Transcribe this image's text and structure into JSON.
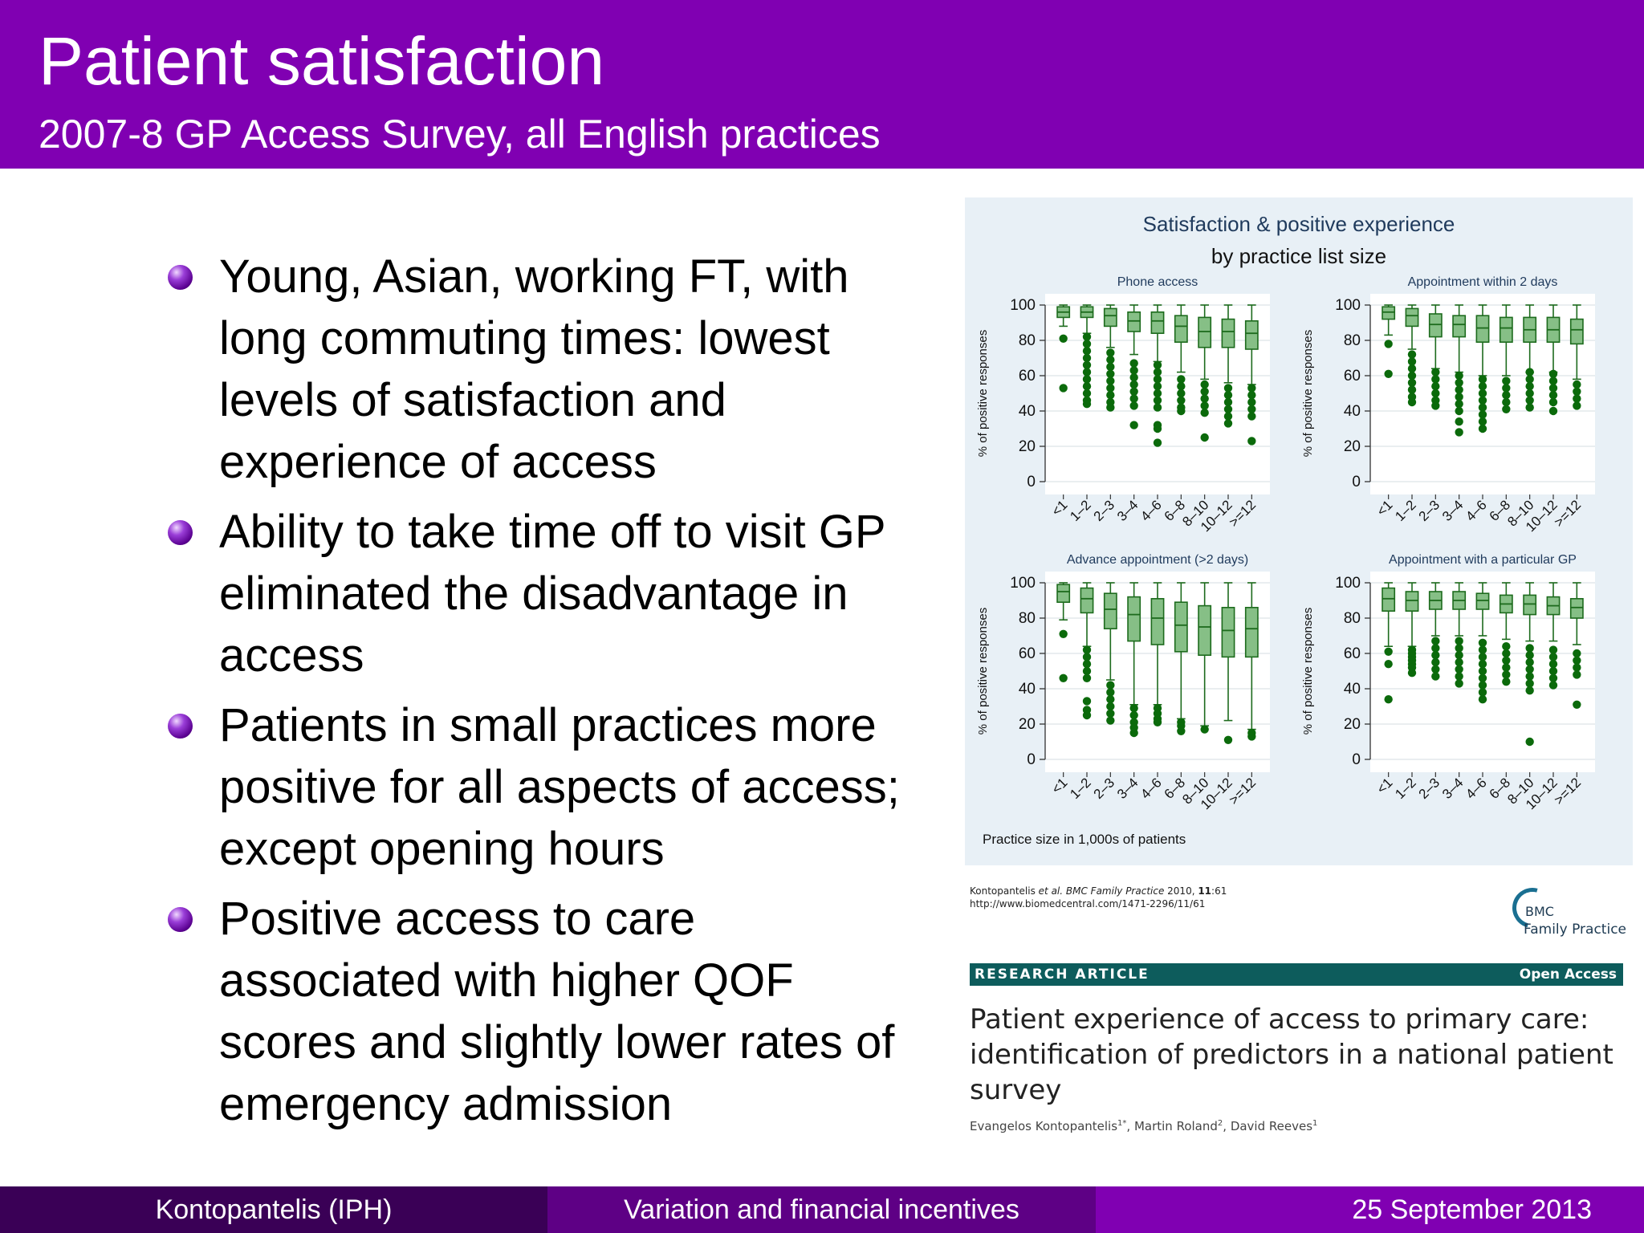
{
  "slide": {
    "title": "Patient satisfaction",
    "subtitle": "2007-8 GP Access Survey, all English practices"
  },
  "bullets": [
    "Young, Asian, working FT, with long commuting times: lowest levels of satisfaction and experience of access",
    "Ability to take time off to visit GP eliminated the disadvantage in access",
    "Patients in small practices more positive for all aspects of access; except opening hours",
    "Positive access to care associated with higher QOF scores and slightly lower rates of emergency admission"
  ],
  "figure": {
    "title_line1": "Satisfaction & positive experience",
    "title_line2": "by practice list size",
    "xlabel_note": "Practice size in 1,000s of patients"
  },
  "chart_data": {
    "type": "box",
    "title": "Satisfaction & positive experience by practice list size",
    "xlabel": "Practice size in 1,000s of patients",
    "ylabel": "% of positive responses",
    "categories": [
      "<1",
      "1–2",
      "2–3",
      "3–4",
      "4–6",
      "6–8",
      "8–10",
      "10–12",
      ">=12"
    ],
    "yticks": [
      0,
      20,
      40,
      60,
      80,
      100
    ],
    "ylim": [
      0,
      100
    ],
    "grid": true,
    "panels": [
      {
        "name": "Phone access",
        "boxes": [
          {
            "whisker_low": 88,
            "q1": 93,
            "median": 96,
            "q3": 99,
            "whisker_high": 100,
            "outliers": [
              81,
              53
            ]
          },
          {
            "whisker_low": 84,
            "q1": 93,
            "median": 96,
            "q3": 99,
            "whisker_high": 100,
            "outliers": [
              82,
              78,
              74,
              70,
              66,
              62,
              58,
              54,
              50,
              46,
              44
            ]
          },
          {
            "whisker_low": 76,
            "q1": 88,
            "median": 94,
            "q3": 98,
            "whisker_high": 100,
            "outliers": [
              73,
              69,
              65,
              61,
              57,
              53,
              49,
              45,
              42
            ]
          },
          {
            "whisker_low": 72,
            "q1": 85,
            "median": 91,
            "q3": 96,
            "whisker_high": 100,
            "outliers": [
              67,
              63,
              59,
              55,
              51,
              47,
              43,
              32
            ]
          },
          {
            "whisker_low": 68,
            "q1": 84,
            "median": 91,
            "q3": 96,
            "whisker_high": 100,
            "outliers": [
              66,
              62,
              58,
              54,
              50,
              46,
              42,
              32,
              30,
              22
            ]
          },
          {
            "whisker_low": 62,
            "q1": 79,
            "median": 88,
            "q3": 94,
            "whisker_high": 100,
            "outliers": [
              58,
              54,
              50,
              46,
              42,
              40
            ]
          },
          {
            "whisker_low": 58,
            "q1": 76,
            "median": 85,
            "q3": 93,
            "whisker_high": 100,
            "outliers": [
              55,
              51,
              47,
              43,
              39,
              25
            ]
          },
          {
            "whisker_low": 56,
            "q1": 76,
            "median": 85,
            "q3": 92,
            "whisker_high": 100,
            "outliers": [
              53,
              49,
              45,
              41,
              37,
              33
            ]
          },
          {
            "whisker_low": 55,
            "q1": 75,
            "median": 84,
            "q3": 91,
            "whisker_high": 100,
            "outliers": [
              53,
              49,
              45,
              41,
              37,
              23
            ]
          }
        ]
      },
      {
        "name": "Appointment within 2 days",
        "boxes": [
          {
            "whisker_low": 83,
            "q1": 92,
            "median": 96,
            "q3": 99,
            "whisker_high": 100,
            "outliers": [
              78,
              61
            ]
          },
          {
            "whisker_low": 75,
            "q1": 88,
            "median": 94,
            "q3": 98,
            "whisker_high": 100,
            "outliers": [
              72,
              68,
              64,
              60,
              56,
              52,
              48,
              45
            ]
          },
          {
            "whisker_low": 64,
            "q1": 82,
            "median": 89,
            "q3": 95,
            "whisker_high": 100,
            "outliers": [
              62,
              58,
              54,
              50,
              46,
              43
            ]
          },
          {
            "whisker_low": 62,
            "q1": 82,
            "median": 89,
            "q3": 94,
            "whisker_high": 100,
            "outliers": [
              60,
              56,
              52,
              48,
              44,
              40,
              34,
              28
            ]
          },
          {
            "whisker_low": 60,
            "q1": 79,
            "median": 87,
            "q3": 94,
            "whisker_high": 100,
            "outliers": [
              58,
              54,
              50,
              46,
              42,
              38,
              34,
              30
            ]
          },
          {
            "whisker_low": 60,
            "q1": 79,
            "median": 87,
            "q3": 93,
            "whisker_high": 100,
            "outliers": [
              57,
              53,
              49,
              45,
              41
            ]
          },
          {
            "whisker_low": 62,
            "q1": 79,
            "median": 86,
            "q3": 93,
            "whisker_high": 100,
            "outliers": [
              62,
              58,
              54,
              50,
              46,
              42
            ]
          },
          {
            "whisker_low": 62,
            "q1": 79,
            "median": 86,
            "q3": 93,
            "whisker_high": 100,
            "outliers": [
              61,
              57,
              53,
              49,
              45,
              40
            ]
          },
          {
            "whisker_low": 58,
            "q1": 78,
            "median": 86,
            "q3": 92,
            "whisker_high": 100,
            "outliers": [
              55,
              51,
              47,
              43
            ]
          }
        ]
      },
      {
        "name": "Advance appointment (>2 days)",
        "boxes": [
          {
            "whisker_low": 79,
            "q1": 89,
            "median": 95,
            "q3": 99,
            "whisker_high": 100,
            "outliers": [
              71,
              46
            ]
          },
          {
            "whisker_low": 64,
            "q1": 83,
            "median": 91,
            "q3": 97,
            "whisker_high": 100,
            "outliers": [
              62,
              58,
              54,
              50,
              46,
              33,
              28,
              25
            ]
          },
          {
            "whisker_low": 45,
            "q1": 74,
            "median": 85,
            "q3": 94,
            "whisker_high": 100,
            "outliers": [
              42,
              38,
              34,
              30,
              26,
              22
            ]
          },
          {
            "whisker_low": 31,
            "q1": 67,
            "median": 82,
            "q3": 92,
            "whisker_high": 100,
            "outliers": [
              29,
              25,
              21,
              18,
              15
            ]
          },
          {
            "whisker_low": 31,
            "q1": 65,
            "median": 80,
            "q3": 91,
            "whisker_high": 100,
            "outliers": [
              29,
              26,
              23,
              21
            ]
          },
          {
            "whisker_low": 23,
            "q1": 61,
            "median": 76,
            "q3": 89,
            "whisker_high": 100,
            "outliers": [
              21,
              19,
              16
            ]
          },
          {
            "whisker_low": 19,
            "q1": 59,
            "median": 75,
            "q3": 87,
            "whisker_high": 100,
            "outliers": [
              17
            ]
          },
          {
            "whisker_low": 22,
            "q1": 58,
            "median": 73,
            "q3": 86,
            "whisker_high": 100,
            "outliers": [
              11
            ]
          },
          {
            "whisker_low": 17,
            "q1": 58,
            "median": 74,
            "q3": 86,
            "whisker_high": 100,
            "outliers": [
              15,
              13
            ]
          }
        ]
      },
      {
        "name": "Appointment with a particular GP",
        "boxes": [
          {
            "whisker_low": 64,
            "q1": 84,
            "median": 91,
            "q3": 97,
            "whisker_high": 100,
            "outliers": [
              61,
              54,
              34
            ]
          },
          {
            "whisker_low": 64,
            "q1": 84,
            "median": 90,
            "q3": 95,
            "whisker_high": 100,
            "outliers": [
              62,
              60,
              58,
              56,
              54,
              52,
              49
            ]
          },
          {
            "whisker_low": 70,
            "q1": 85,
            "median": 90,
            "q3": 95,
            "whisker_high": 100,
            "outliers": [
              67,
              63,
              59,
              55,
              51,
              47
            ]
          },
          {
            "whisker_low": 70,
            "q1": 85,
            "median": 90,
            "q3": 95,
            "whisker_high": 100,
            "outliers": [
              67,
              63,
              59,
              55,
              51,
              47,
              43
            ]
          },
          {
            "whisker_low": 70,
            "q1": 85,
            "median": 90,
            "q3": 94,
            "whisker_high": 100,
            "outliers": [
              66,
              62,
              58,
              54,
              50,
              46,
              42,
              38,
              34
            ]
          },
          {
            "whisker_low": 68,
            "q1": 83,
            "median": 88,
            "q3": 93,
            "whisker_high": 100,
            "outliers": [
              64,
              60,
              56,
              52,
              48,
              44
            ]
          },
          {
            "whisker_low": 67,
            "q1": 82,
            "median": 88,
            "q3": 93,
            "whisker_high": 100,
            "outliers": [
              63,
              59,
              55,
              51,
              47,
              43,
              39,
              10
            ]
          },
          {
            "whisker_low": 67,
            "q1": 82,
            "median": 87,
            "q3": 92,
            "whisker_high": 100,
            "outliers": [
              62,
              58,
              54,
              50,
              46,
              42
            ]
          },
          {
            "whisker_low": 65,
            "q1": 80,
            "median": 86,
            "q3": 91,
            "whisker_high": 100,
            "outliers": [
              60,
              56,
              52,
              48,
              31
            ]
          }
        ]
      }
    ],
    "colors": {
      "box_fill": "#86bf86",
      "box_stroke": "#1d6b1d",
      "outlier": "#0b6a0b"
    }
  },
  "citation": {
    "prefix": "Kontopantelis ",
    "etal": "et al. BMC Family Practice",
    "year": " 2010, ",
    "volume": "11",
    "page": ":61",
    "url": "http://www.biomedcentral.com/1471-2296/11/61"
  },
  "journal": {
    "logo_text": "BMC",
    "name": "Family Practice"
  },
  "article": {
    "type_label": "RESEARCH ARTICLE",
    "access_label": "Open Access",
    "title": "Patient experience of access to primary care: identification of predictors in a national patient survey",
    "author1": "Evangelos Kontopantelis",
    "author1_sup": "1*",
    "author2": ", Martin Roland",
    "author2_sup": "2",
    "author3": ", David Reeves",
    "author3_sup": "1"
  },
  "footer": {
    "left": "Kontopantelis  (IPH)",
    "center": "Variation and financial incentives",
    "right": "25 September 2013"
  }
}
